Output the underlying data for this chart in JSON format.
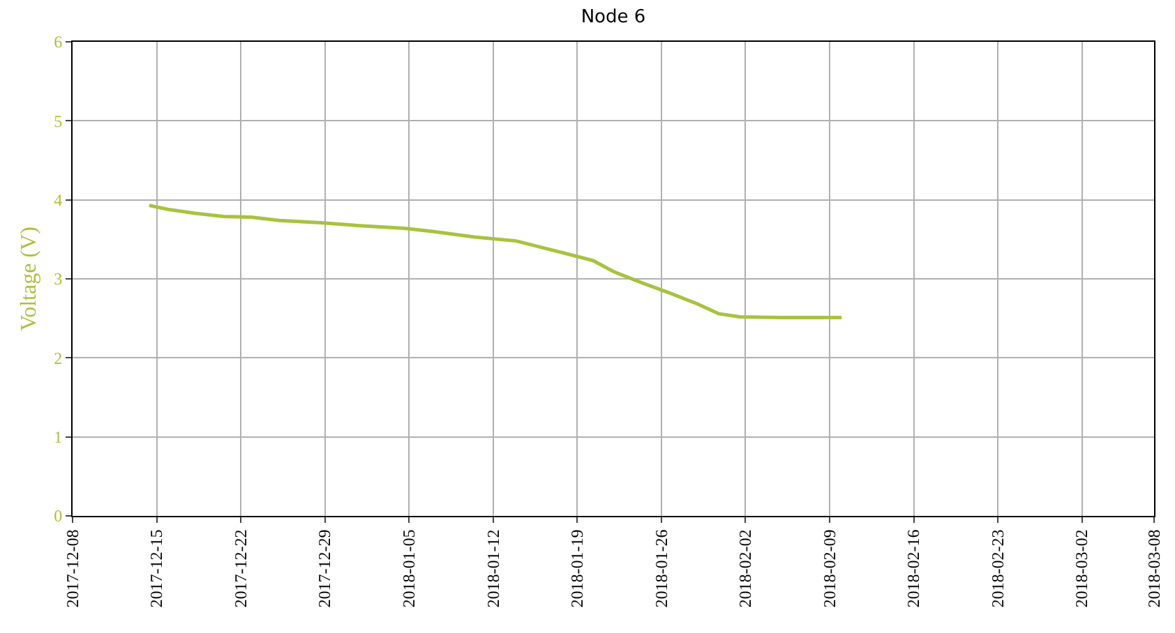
{
  "chart_data": {
    "type": "line",
    "title": "Node 6",
    "ylabel": "Voltage (V)",
    "x": [
      "2017-12-14T09:00",
      "2017-12-15T22:00",
      "2017-12-18T05:00",
      "2017-12-20T13:00",
      "2017-12-22T21:00",
      "2017-12-25T05:00",
      "2017-12-28T16:00",
      "2018-01-01T04:00",
      "2018-01-04T15:00",
      "2018-01-06T23:00",
      "2018-01-10T11:00",
      "2018-01-13T22:00",
      "2018-01-16T06:00",
      "2018-01-18T14:00",
      "2018-01-20T08:00",
      "2018-01-22T01:00",
      "2018-01-24T09:00",
      "2018-01-26T17:00",
      "2018-01-29T01:00",
      "2018-01-30T18:00",
      "2018-02-01T12:00",
      "2018-02-05T00:00",
      "2018-02-10T00:00"
    ],
    "series": [
      {
        "color": "#a9c23f",
        "values": [
          3.93,
          3.88,
          3.83,
          3.79,
          3.78,
          3.74,
          3.71,
          3.67,
          3.64,
          3.6,
          3.53,
          3.48,
          3.39,
          3.3,
          3.23,
          3.09,
          2.95,
          2.82,
          2.68,
          2.56,
          2.52,
          2.51,
          2.51
        ]
      }
    ],
    "xlim": [
      "2017-12-08",
      "2018-03-08"
    ],
    "xticks": [
      "2017-12-08",
      "2017-12-15",
      "2017-12-22",
      "2017-12-29",
      "2018-01-05",
      "2018-01-12",
      "2018-01-19",
      "2018-01-26",
      "2018-02-02",
      "2018-02-09",
      "2018-02-16",
      "2018-02-23",
      "2018-03-02",
      "2018-03-08"
    ],
    "ylim": [
      0,
      6
    ],
    "yticks": [
      0,
      1,
      2,
      3,
      4,
      5,
      6
    ],
    "grid": true,
    "marker": "none",
    "line_style": "solid",
    "legend": false
  }
}
